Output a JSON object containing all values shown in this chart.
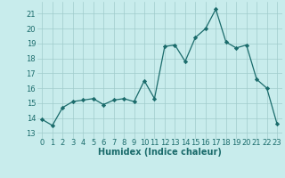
{
  "x": [
    0,
    1,
    2,
    3,
    4,
    5,
    6,
    7,
    8,
    9,
    10,
    11,
    12,
    13,
    14,
    15,
    16,
    17,
    18,
    19,
    20,
    21,
    22,
    23
  ],
  "y": [
    13.9,
    13.5,
    14.7,
    15.1,
    15.2,
    15.3,
    14.9,
    15.2,
    15.3,
    15.1,
    16.5,
    15.3,
    18.8,
    18.9,
    17.8,
    19.4,
    20.0,
    21.3,
    19.1,
    18.7,
    18.9,
    16.6,
    16.0,
    13.6
  ],
  "line_color": "#1a6b6b",
  "marker": "D",
  "marker_size": 2.2,
  "bg_color": "#c8ecec",
  "grid_color": "#a0cccc",
  "xlabel": "Humidex (Indice chaleur)",
  "ylabel_ticks": [
    13,
    14,
    15,
    16,
    17,
    18,
    19,
    20,
    21
  ],
  "ylim": [
    12.6,
    21.8
  ],
  "xlim": [
    -0.5,
    23.5
  ],
  "xticks": [
    0,
    1,
    2,
    3,
    4,
    5,
    6,
    7,
    8,
    9,
    10,
    11,
    12,
    13,
    14,
    15,
    16,
    17,
    18,
    19,
    20,
    21,
    22,
    23
  ],
  "tick_fontsize": 6.0,
  "xlabel_fontsize": 7.0,
  "linewidth": 0.9
}
